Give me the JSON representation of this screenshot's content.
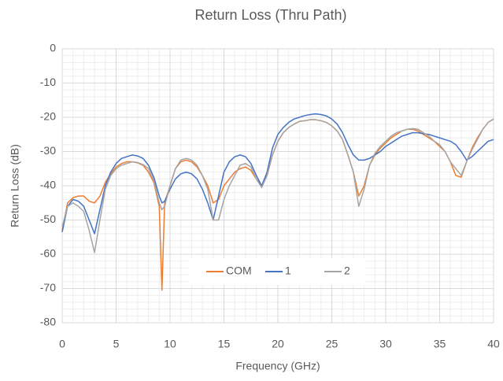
{
  "chart_data": {
    "type": "line",
    "title": "Return Loss (Thru Path)",
    "x_label": "Frequency (GHz)",
    "y_label": "Return Loss (dB)",
    "x": [
      0,
      0.5,
      1,
      1.5,
      2,
      2.5,
      3,
      3.5,
      4,
      4.5,
      5,
      5.5,
      6,
      6.5,
      7,
      7.5,
      8,
      8.5,
      9,
      9.25,
      9.5,
      10,
      10.5,
      11,
      11.5,
      12,
      12.5,
      13,
      13.5,
      14,
      14.5,
      15,
      15.5,
      16,
      16.5,
      17,
      17.5,
      18,
      18.5,
      19,
      19.5,
      20,
      20.5,
      21,
      21.5,
      22,
      22.5,
      23,
      23.5,
      24,
      24.5,
      25,
      25.5,
      26,
      26.5,
      27,
      27.5,
      28,
      28.5,
      29,
      29.5,
      30,
      30.5,
      31,
      31.5,
      32,
      32.5,
      33,
      33.5,
      34,
      34.5,
      35,
      35.5,
      36,
      36.5,
      37,
      37.5,
      38,
      38.5,
      39,
      39.5,
      40
    ],
    "series": [
      {
        "name": "COM",
        "color": "#ed7d31",
        "values": [
          -53,
          -45,
          -43.5,
          -43,
          -43,
          -44.5,
          -45,
          -43,
          -39,
          -36.5,
          -34.5,
          -33.5,
          -33,
          -33,
          -33.3,
          -34,
          -36,
          -39,
          -46,
          -70.5,
          -45,
          -40,
          -35,
          -33,
          -32.5,
          -33,
          -34.5,
          -37,
          -40,
          -45,
          -44,
          -40,
          -38,
          -36,
          -35,
          -34.5,
          -35.5,
          -38,
          -40,
          -37,
          -31,
          -27,
          -24.5,
          -23,
          -22,
          -21.2,
          -21,
          -20.7,
          -20.7,
          -21,
          -21.5,
          -22.5,
          -24,
          -26.5,
          -31,
          -36,
          -43,
          -40,
          -34,
          -31,
          -29,
          -27.5,
          -26,
          -25,
          -24,
          -23.5,
          -23.5,
          -24,
          -25,
          -26,
          -27,
          -28.5,
          -30,
          -33,
          -37,
          -37.5,
          -33,
          -29,
          -26,
          -23.5,
          -21.5,
          -20.5
        ]
      },
      {
        "name": "1",
        "color": "#4472c4",
        "values": [
          -53.5,
          -46,
          -44,
          -44.5,
          -46,
          -50,
          -54,
          -47,
          -40,
          -36,
          -33.5,
          -32,
          -31.5,
          -31,
          -31.3,
          -32,
          -34,
          -37.5,
          -43,
          -45,
          -44.5,
          -41,
          -38,
          -36.5,
          -36,
          -36.5,
          -38,
          -41,
          -45,
          -50,
          -43,
          -36,
          -33,
          -31.5,
          -31,
          -31.5,
          -33.5,
          -37,
          -40,
          -36,
          -29,
          -25,
          -23,
          -21.5,
          -20.5,
          -20,
          -19.5,
          -19.2,
          -19,
          -19.2,
          -19.6,
          -20.5,
          -22,
          -24.5,
          -28,
          -31,
          -32.5,
          -32.5,
          -32,
          -31,
          -30,
          -28.5,
          -27.5,
          -26.5,
          -25.5,
          -25,
          -24.5,
          -24.5,
          -24.8,
          -25,
          -25.5,
          -26,
          -26.5,
          -27,
          -28,
          -30,
          -32.5,
          -31.5,
          -30,
          -28.5,
          -27,
          -26.5
        ]
      },
      {
        "name": "2",
        "color": "#a5a5a5",
        "values": [
          -52,
          -46,
          -45,
          -46,
          -47.5,
          -53,
          -59.5,
          -50,
          -41,
          -37,
          -35,
          -34,
          -33.5,
          -33,
          -33.2,
          -33.8,
          -35,
          -38.5,
          -45,
          -47,
          -46,
          -40,
          -35,
          -32.5,
          -32,
          -32.5,
          -34,
          -37,
          -41,
          -50,
          -50,
          -44,
          -40,
          -37,
          -34,
          -33.5,
          -34.5,
          -38,
          -40.5,
          -37,
          -31,
          -27,
          -24.5,
          -23,
          -22,
          -21.2,
          -21,
          -20.7,
          -20.7,
          -21,
          -21.5,
          -22.5,
          -24,
          -26.5,
          -31,
          -36,
          -46,
          -41,
          -34,
          -30.5,
          -28.5,
          -27,
          -25.5,
          -24.5,
          -24,
          -23.5,
          -23.3,
          -23.5,
          -24.5,
          -25.5,
          -27,
          -28,
          -30,
          -33,
          -35,
          -37,
          -33,
          -29.5,
          -26.5,
          -23.5,
          -21.5,
          -20.5
        ]
      }
    ],
    "xlim": [
      0,
      40
    ],
    "xticks": [
      0,
      5,
      10,
      15,
      20,
      25,
      30,
      35,
      40
    ],
    "ylim": [
      -80,
      0
    ],
    "yticks": [
      -80,
      -70,
      -60,
      -50,
      -40,
      -30,
      -20,
      -10,
      0
    ],
    "grid": true,
    "legend": "center"
  }
}
